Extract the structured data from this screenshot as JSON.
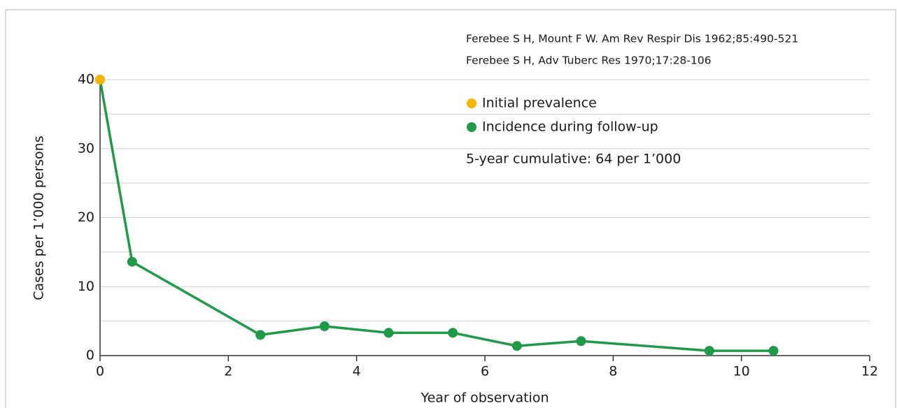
{
  "chart_data": {
    "type": "line",
    "source_lines": [
      "Ferebee S H, Mount F W. Am Rev Respir Dis 1962;85:490-521",
      "Ferebee S H, Adv Tuberc Res 1970;17:28-106"
    ],
    "annotation": "5-year cumulative: 64 per 1’000",
    "x_label": "Year of observation",
    "y_label": "Cases per 1’000 persons",
    "series": [
      {
        "name": "Incidence during follow-up",
        "color": "#1e9a48",
        "x": [
          0,
          0.5,
          2.5,
          3.5,
          4.5,
          5.5,
          6.5,
          7.5,
          9.5,
          10.5
        ],
        "values": [
          40,
          13.6,
          3.0,
          4.25,
          3.3,
          3.3,
          1.4,
          2.1,
          0.7,
          0.7
        ]
      },
      {
        "name": "Initial prevalence",
        "color": "#f7b500",
        "x": [
          0
        ],
        "values": [
          40
        ]
      }
    ],
    "legend_order": [
      1,
      0
    ],
    "xlim": [
      0,
      12
    ],
    "xticks": [
      0,
      2,
      4,
      6,
      8,
      10,
      12
    ],
    "ylim": [
      0,
      40
    ],
    "yticks": [
      0,
      10,
      20,
      30,
      40
    ],
    "minor_yticks": [
      5,
      15,
      25,
      35
    ],
    "grid": true
  }
}
